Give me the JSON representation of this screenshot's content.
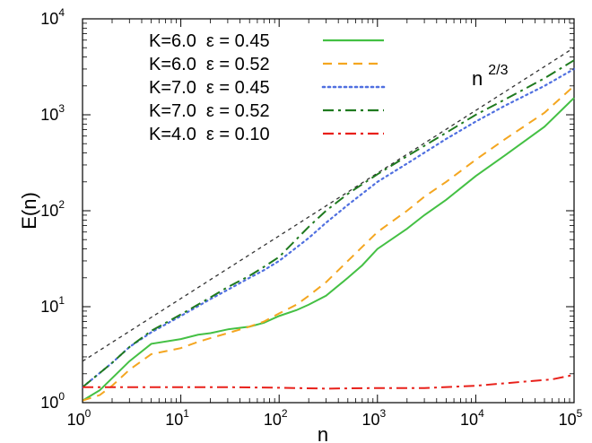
{
  "chart_data": {
    "type": "line",
    "title": "",
    "xlabel": "n",
    "ylabel": "E(n)",
    "xscale": "log",
    "yscale": "log",
    "xlim": [
      1,
      100000
    ],
    "ylim": [
      1,
      10000
    ],
    "x_ticks": [
      {
        "base": "10",
        "exp": "0"
      },
      {
        "base": "10",
        "exp": "1"
      },
      {
        "base": "10",
        "exp": "2"
      },
      {
        "base": "10",
        "exp": "3"
      },
      {
        "base": "10",
        "exp": "4"
      },
      {
        "base": "10",
        "exp": "5"
      }
    ],
    "y_ticks": [
      {
        "base": "10",
        "exp": "0"
      },
      {
        "base": "10",
        "exp": "1"
      },
      {
        "base": "10",
        "exp": "2"
      },
      {
        "base": "10",
        "exp": "3"
      },
      {
        "base": "10",
        "exp": "4"
      }
    ],
    "grid": false,
    "legend_position": "top-left",
    "annotation": {
      "base": "n",
      "exp": "2/3"
    },
    "reference_line": {
      "label": "n^(2/3)",
      "style": "dotted",
      "color": "#333333",
      "points": [
        [
          1,
          2.7
        ],
        [
          100000,
          5000
        ]
      ]
    },
    "series": [
      {
        "name": "K=6.0  ε = 0.45",
        "color": "#44c044",
        "style": "solid",
        "points": [
          [
            1,
            1.05
          ],
          [
            1.5,
            1.35
          ],
          [
            2,
            1.8
          ],
          [
            3,
            2.7
          ],
          [
            5,
            4.1
          ],
          [
            10,
            4.6
          ],
          [
            15,
            5.1
          ],
          [
            20,
            5.3
          ],
          [
            30,
            5.8
          ],
          [
            50,
            6.2
          ],
          [
            70,
            6.8
          ],
          [
            100,
            8
          ],
          [
            150,
            9.2
          ],
          [
            200,
            10.5
          ],
          [
            300,
            13
          ],
          [
            500,
            20
          ],
          [
            700,
            27
          ],
          [
            1000,
            40
          ],
          [
            2000,
            65
          ],
          [
            3000,
            90
          ],
          [
            5000,
            130
          ],
          [
            10000,
            230
          ],
          [
            20000,
            380
          ],
          [
            50000,
            750
          ],
          [
            100000,
            1500
          ]
        ]
      },
      {
        "name": "K=6.0  ε = 0.52",
        "color": "#f4a620",
        "style": "dashed",
        "points": [
          [
            1,
            1.05
          ],
          [
            1.5,
            1.2
          ],
          [
            2,
            1.5
          ],
          [
            3,
            2.2
          ],
          [
            5,
            3.2
          ],
          [
            10,
            3.7
          ],
          [
            15,
            4.3
          ],
          [
            20,
            4.7
          ],
          [
            30,
            5.3
          ],
          [
            50,
            6.2
          ],
          [
            70,
            7
          ],
          [
            100,
            8.5
          ],
          [
            150,
            10.5
          ],
          [
            200,
            13
          ],
          [
            300,
            18
          ],
          [
            500,
            30
          ],
          [
            700,
            42
          ],
          [
            1000,
            60
          ],
          [
            2000,
            100
          ],
          [
            3000,
            140
          ],
          [
            5000,
            200
          ],
          [
            10000,
            340
          ],
          [
            20000,
            560
          ],
          [
            50000,
            1050
          ],
          [
            100000,
            2000
          ]
        ]
      },
      {
        "name": "K=7.0  ε = 0.45",
        "color": "#4f6fe0",
        "style": "dotted",
        "points": [
          [
            1,
            1.45
          ],
          [
            2,
            2.6
          ],
          [
            3,
            3.8
          ],
          [
            5,
            5.4
          ],
          [
            10,
            8
          ],
          [
            20,
            12
          ],
          [
            30,
            15
          ],
          [
            50,
            20
          ],
          [
            70,
            24
          ],
          [
            100,
            30
          ],
          [
            200,
            52
          ],
          [
            300,
            75
          ],
          [
            500,
            115
          ],
          [
            1000,
            200
          ],
          [
            2000,
            310
          ],
          [
            5000,
            560
          ],
          [
            10000,
            850
          ],
          [
            20000,
            1250
          ],
          [
            50000,
            2000
          ],
          [
            100000,
            3000
          ]
        ]
      },
      {
        "name": "K=7.0  ε = 0.52",
        "color": "#1f7a1f",
        "style": "dashdot",
        "points": [
          [
            1,
            1.45
          ],
          [
            2,
            2.6
          ],
          [
            3,
            3.8
          ],
          [
            5,
            5.6
          ],
          [
            10,
            8.3
          ],
          [
            20,
            12.5
          ],
          [
            30,
            16
          ],
          [
            50,
            21
          ],
          [
            70,
            26
          ],
          [
            100,
            33
          ],
          [
            200,
            68
          ],
          [
            300,
            100
          ],
          [
            500,
            150
          ],
          [
            1000,
            240
          ],
          [
            2000,
            370
          ],
          [
            5000,
            650
          ],
          [
            10000,
            1000
          ],
          [
            20000,
            1450
          ],
          [
            50000,
            2400
          ],
          [
            100000,
            3700
          ]
        ]
      },
      {
        "name": "K=4.0  ε = 0.10",
        "color": "#e8201a",
        "style": "dashdot",
        "points": [
          [
            1,
            1.45
          ],
          [
            5,
            1.45
          ],
          [
            10,
            1.45
          ],
          [
            30,
            1.45
          ],
          [
            100,
            1.43
          ],
          [
            300,
            1.4
          ],
          [
            1000,
            1.42
          ],
          [
            3000,
            1.42
          ],
          [
            10000,
            1.5
          ],
          [
            30000,
            1.65
          ],
          [
            60000,
            1.75
          ],
          [
            100000,
            1.95
          ]
        ]
      }
    ]
  }
}
